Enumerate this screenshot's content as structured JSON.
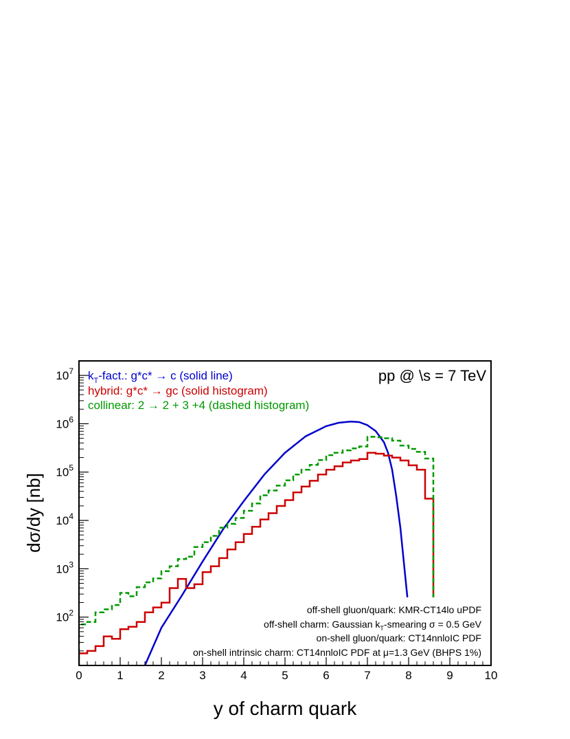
{
  "chart_data": {
    "type": "line",
    "x_label": "y of charm quark",
    "y_label": "dσ/dy   [nb]",
    "x_range": [
      0,
      10
    ],
    "y_range_log10": [
      1.0,
      7.3
    ],
    "y_scale": "log",
    "x_ticks": [
      "0",
      "1",
      "2",
      "3",
      "4",
      "5",
      "6",
      "7",
      "8",
      "9",
      "10"
    ],
    "y_ticks": [
      {
        "base": "10",
        "exp": "2",
        "value": 100
      },
      {
        "base": "10",
        "exp": "3",
        "value": 1000
      },
      {
        "base": "10",
        "exp": "4",
        "value": 10000
      },
      {
        "base": "10",
        "exp": "5",
        "value": 100000
      },
      {
        "base": "10",
        "exp": "6",
        "value": 1000000
      },
      {
        "base": "10",
        "exp": "7",
        "value": 10000000
      }
    ],
    "top_right_label": "pp @ \\s = 7 TeV",
    "legend": [
      {
        "text": "k_T-fact.: g*c* → c (solid line)",
        "color": "#0000cc"
      },
      {
        "text": "hybrid: g*c* → gc (solid histogram)",
        "color": "#cc0000"
      },
      {
        "text": "collinear: 2 → 2 + 3 +4 (dashed histogram)",
        "color": "#009900"
      }
    ],
    "notes": [
      "off-shell gluon/quark: KMR-CT14lo uPDF",
      "off-shell charm: Gaussian k_T-smearing σ = 0.5 GeV",
      "on-shell gluon/quark: CT14nnloIC PDF",
      "on-shell intrinsic charm: CT14nnloIC PDF at μ=1.3 GeV (BHPS 1%)"
    ],
    "series": [
      {
        "key": "kt",
        "style": "line",
        "color": "#0000cc",
        "x": [
          1.6,
          2.0,
          2.5,
          3.0,
          3.5,
          4.0,
          4.5,
          5.0,
          5.5,
          6.0,
          6.3,
          6.6,
          6.8,
          7.0,
          7.2,
          7.4,
          7.5,
          7.6,
          7.7,
          7.8,
          7.9,
          7.97
        ],
        "log10y": [
          1.0,
          1.78,
          2.45,
          3.15,
          3.82,
          4.4,
          4.95,
          5.4,
          5.74,
          5.95,
          6.02,
          6.045,
          6.035,
          5.97,
          5.85,
          5.62,
          5.4,
          5.05,
          4.5,
          3.85,
          3.0,
          2.41
        ]
      },
      {
        "key": "hybrid",
        "style": "step",
        "color": "#cc0000",
        "edges": [
          0,
          0.2,
          0.4,
          0.6,
          0.8,
          1.0,
          1.2,
          1.4,
          1.6,
          1.8,
          2.0,
          2.2,
          2.4,
          2.6,
          2.8,
          3.0,
          3.2,
          3.4,
          3.6,
          3.8,
          4.0,
          4.2,
          4.4,
          4.6,
          4.8,
          5.0,
          5.2,
          5.4,
          5.6,
          5.8,
          6.0,
          6.2,
          6.4,
          6.6,
          6.8,
          7.0,
          7.2,
          7.4,
          7.6,
          7.8,
          8.0,
          8.2,
          8.4,
          8.6
        ],
        "log10y": [
          1.25,
          1.3,
          1.4,
          1.6,
          1.55,
          1.75,
          1.8,
          1.9,
          2.1,
          2.2,
          2.3,
          2.6,
          2.79,
          2.6,
          2.68,
          2.93,
          3.05,
          3.22,
          3.4,
          3.55,
          3.72,
          3.87,
          4.02,
          4.15,
          4.3,
          4.42,
          4.58,
          4.7,
          4.82,
          4.95,
          5.05,
          5.12,
          5.2,
          5.24,
          5.27,
          5.4,
          5.38,
          5.34,
          5.3,
          5.24,
          5.14,
          5.05,
          4.45
        ],
        "drop_to": 2.41
      },
      {
        "key": "collinear",
        "style": "step-dashed",
        "color": "#009900",
        "edges": [
          0,
          0.2,
          0.4,
          0.6,
          0.8,
          1.0,
          1.2,
          1.4,
          1.6,
          1.8,
          2.0,
          2.2,
          2.4,
          2.6,
          2.8,
          3.0,
          3.2,
          3.4,
          3.6,
          3.8,
          4.0,
          4.2,
          4.4,
          4.6,
          4.8,
          5.0,
          5.2,
          5.4,
          5.6,
          5.8,
          6.0,
          6.2,
          6.4,
          6.6,
          6.8,
          7.0,
          7.2,
          7.4,
          7.6,
          7.8,
          8.0,
          8.2,
          8.4,
          8.6
        ],
        "log10y": [
          1.85,
          1.9,
          2.1,
          2.16,
          2.25,
          2.5,
          2.43,
          2.62,
          2.72,
          2.8,
          2.95,
          3.05,
          3.2,
          3.25,
          3.45,
          3.55,
          3.68,
          3.85,
          3.93,
          4.05,
          4.2,
          4.35,
          4.52,
          4.62,
          4.72,
          4.83,
          4.95,
          5.05,
          5.15,
          5.25,
          5.35,
          5.4,
          5.45,
          5.49,
          5.53,
          5.73,
          5.72,
          5.7,
          5.65,
          5.55,
          5.48,
          5.42,
          5.28
        ],
        "drop_to": 2.41
      }
    ]
  }
}
